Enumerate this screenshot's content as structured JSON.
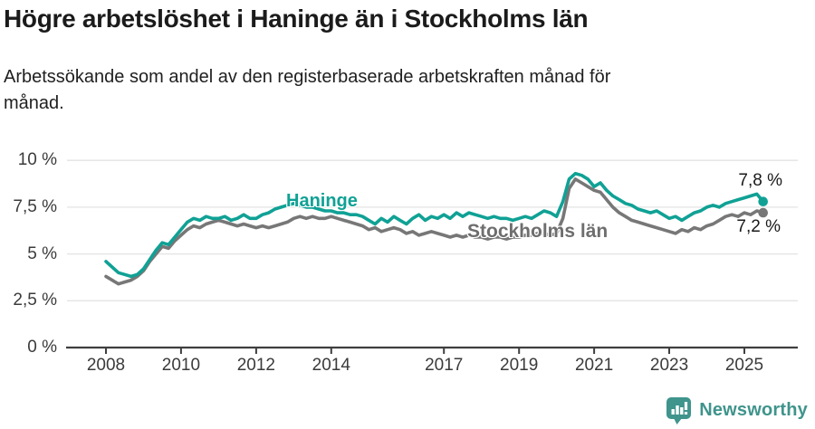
{
  "header": {
    "title": "Högre arbetslöshet i Haninge än i Stockholms län",
    "subtitle_lines": [
      "Arbetssökande som andel av den registerbaserade arbetskraften månad för",
      "månad."
    ]
  },
  "chart_data": {
    "type": "line",
    "unit": "%",
    "x_start": 2008.0,
    "x_step_years": 0.1666667,
    "x_end": 2025.5,
    "ylim": [
      0,
      10
    ],
    "grid": "horizontal",
    "legend_position": "inline-labels-on-lines",
    "y_ticks": [
      {
        "label": "0 %",
        "value": 0
      },
      {
        "label": "2,5 %",
        "value": 2.5
      },
      {
        "label": "5 %",
        "value": 5
      },
      {
        "label": "7,5 %",
        "value": 7.5
      },
      {
        "label": "10 %",
        "value": 10
      }
    ],
    "x_ticks": [
      {
        "label": "2008",
        "year": 2008
      },
      {
        "label": "2010",
        "year": 2010
      },
      {
        "label": "2012",
        "year": 2012
      },
      {
        "label": "2014",
        "year": 2014
      },
      {
        "label": "2017",
        "year": 2017
      },
      {
        "label": "2019",
        "year": 2019
      },
      {
        "label": "2021",
        "year": 2021
      },
      {
        "label": "2023",
        "year": 2023
      },
      {
        "label": "2025",
        "year": 2025
      }
    ],
    "series": [
      {
        "name": "Haninge",
        "slug": "haninge",
        "color": "#10a195",
        "end_label": "7,8 %",
        "end_value": 7.8,
        "values": [
          4.6,
          4.3,
          4.0,
          3.9,
          3.8,
          3.9,
          4.2,
          4.7,
          5.2,
          5.6,
          5.5,
          5.9,
          6.3,
          6.7,
          6.9,
          6.8,
          7.0,
          6.9,
          6.9,
          7.0,
          6.8,
          6.9,
          7.1,
          6.9,
          6.9,
          7.1,
          7.2,
          7.4,
          7.5,
          7.6,
          7.7,
          7.6,
          7.5,
          7.5,
          7.4,
          7.3,
          7.3,
          7.2,
          7.2,
          7.1,
          7.1,
          7.0,
          6.8,
          6.6,
          6.9,
          6.7,
          7.0,
          6.8,
          6.6,
          6.9,
          7.1,
          6.8,
          7.0,
          6.9,
          7.1,
          6.9,
          7.2,
          7.0,
          7.2,
          7.1,
          7.0,
          6.9,
          7.0,
          6.9,
          6.9,
          6.8,
          6.9,
          7.0,
          6.9,
          7.1,
          7.3,
          7.2,
          7.0,
          7.8,
          9.0,
          9.3,
          9.2,
          9.0,
          8.6,
          8.8,
          8.4,
          8.1,
          7.9,
          7.7,
          7.6,
          7.4,
          7.3,
          7.2,
          7.3,
          7.1,
          6.9,
          7.0,
          6.8,
          7.0,
          7.2,
          7.3,
          7.5,
          7.6,
          7.5,
          7.7,
          7.8,
          7.9,
          8.0,
          8.1,
          8.2,
          7.8
        ]
      },
      {
        "name": "Stockholms län",
        "slug": "stockholms-lan",
        "color": "#777777",
        "label_color": "#6e6e6e",
        "end_label": "7,2 %",
        "end_value": 7.2,
        "values": [
          3.8,
          3.6,
          3.4,
          3.5,
          3.6,
          3.8,
          4.1,
          4.6,
          5.0,
          5.4,
          5.3,
          5.7,
          6.0,
          6.3,
          6.5,
          6.4,
          6.6,
          6.7,
          6.8,
          6.7,
          6.6,
          6.5,
          6.6,
          6.5,
          6.4,
          6.5,
          6.4,
          6.5,
          6.6,
          6.7,
          6.9,
          7.0,
          6.9,
          7.0,
          6.9,
          6.9,
          7.0,
          6.9,
          6.8,
          6.7,
          6.6,
          6.5,
          6.3,
          6.4,
          6.2,
          6.3,
          6.4,
          6.3,
          6.1,
          6.2,
          6.0,
          6.1,
          6.2,
          6.1,
          6.0,
          5.9,
          6.0,
          5.9,
          6.0,
          5.9,
          5.9,
          5.8,
          5.9,
          5.9,
          5.8,
          5.9,
          5.9,
          6.0,
          6.0,
          6.1,
          6.1,
          6.0,
          6.1,
          6.9,
          8.5,
          9.0,
          8.8,
          8.6,
          8.4,
          8.3,
          7.9,
          7.5,
          7.2,
          7.0,
          6.8,
          6.7,
          6.6,
          6.5,
          6.4,
          6.3,
          6.2,
          6.1,
          6.3,
          6.2,
          6.4,
          6.3,
          6.5,
          6.6,
          6.8,
          7.0,
          7.1,
          7.0,
          7.2,
          7.1,
          7.3,
          7.2
        ]
      }
    ]
  },
  "footer": {
    "brand": "Newsworthy",
    "brand_color": "#3f948c",
    "logo_icon": "bar-chart-speech-bubble"
  },
  "colors": {
    "background": "#ffffff",
    "gridline": "#e3e3e3",
    "axis": "#3f3f3f",
    "tick_text": "#3b3b3b",
    "title_text": "#1b1b1b"
  }
}
